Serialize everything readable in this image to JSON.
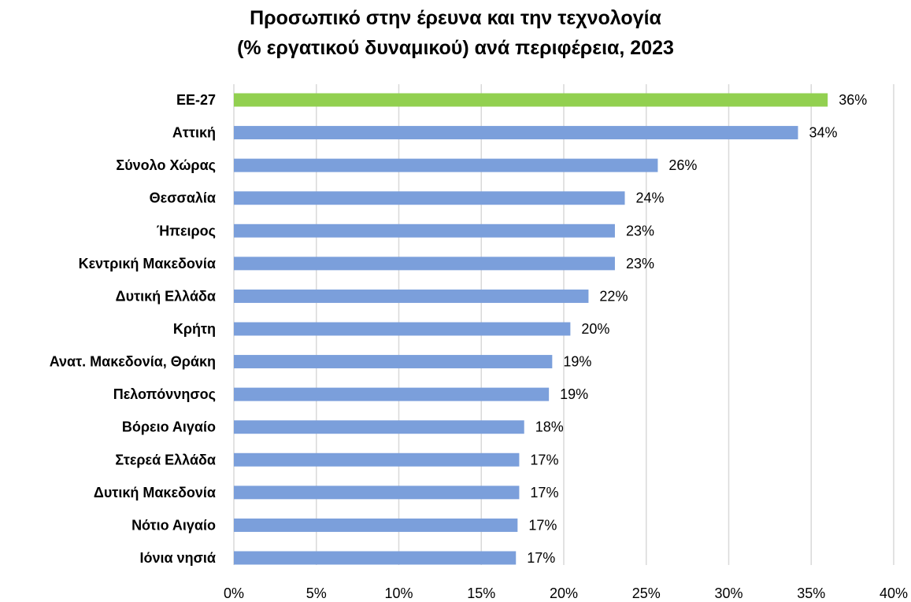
{
  "chart_data": {
    "type": "bar",
    "orientation": "horizontal",
    "title_line1": "Προσωπικό στην έρευνα και την τεχνολογία",
    "title_line2": "(% εργατικού δυναμικού) ανά περιφέρεια, 2023",
    "xlabel": "",
    "ylabel": "",
    "xlim": [
      0,
      40
    ],
    "x_ticks": [
      "0%",
      "5%",
      "10%",
      "15%",
      "20%",
      "25%",
      "30%",
      "35%",
      "40%"
    ],
    "x_tick_values": [
      0,
      5,
      10,
      15,
      20,
      25,
      30,
      35,
      40
    ],
    "grid": "vertical",
    "legend": "none",
    "categories": [
      "ΕΕ-27",
      "Αττική",
      "Σύνολο Χώρας",
      "Θεσσαλία",
      "Ήπειρος",
      "Κεντρική Μακεδονία",
      "Δυτική Ελλάδα",
      "Κρήτη",
      "Ανατ. Μακεδονία, Θράκη",
      "Πελοπόννησος",
      "Βόρειο Αιγαίο",
      "Στερεά Ελλάδα",
      "Δυτική Μακεδονία",
      "Νότιο Αιγαίο",
      "Ιόνια νησιά"
    ],
    "values": [
      36,
      34.2,
      25.7,
      23.7,
      23.1,
      23.1,
      21.5,
      20.4,
      19.3,
      19.1,
      17.6,
      17.3,
      17.3,
      17.2,
      17.1
    ],
    "value_labels": [
      "36%",
      "34%",
      "26%",
      "24%",
      "23%",
      "23%",
      "22%",
      "20%",
      "19%",
      "19%",
      "18%",
      "17%",
      "17%",
      "17%",
      "17%"
    ],
    "colors": {
      "highlight": "#92D050",
      "bar": "#7B9FDB",
      "grid": "#D9D9D9"
    },
    "highlight_index": 0
  }
}
